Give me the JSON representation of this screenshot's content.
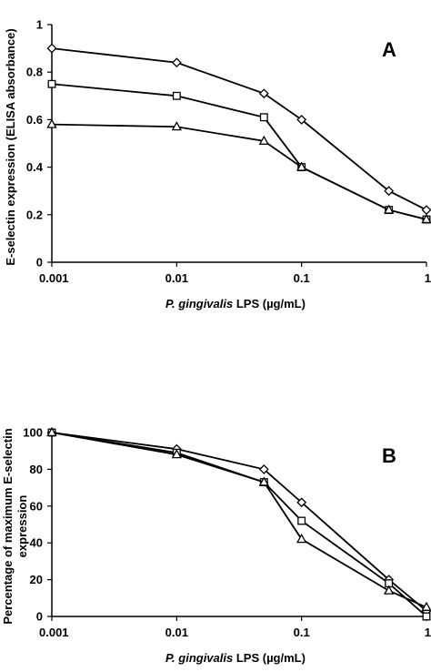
{
  "chart_data": [
    {
      "type": "line",
      "panel_label": "A",
      "x": [
        0.001,
        0.01,
        0.05,
        0.1,
        0.5,
        1
      ],
      "x_tick_labels": [
        "0.001",
        "0.01",
        "0.1",
        "1"
      ],
      "x_ticks": [
        0.001,
        0.01,
        0.1,
        1
      ],
      "xscale": "log",
      "xlabel_italic": "P. gingivalis",
      "xlabel_rest": " LPS (µg/mL)",
      "ylabel": "E-selectin expression (ELISA absorbance)",
      "ylim": [
        0,
        1
      ],
      "y_ticks": [
        0,
        0.2,
        0.4,
        0.6,
        0.8,
        1
      ],
      "y_tick_labels": [
        "0",
        "0.2",
        "0.4",
        "0.6",
        "0.8",
        "1"
      ],
      "grid": false,
      "series": [
        {
          "marker": "diamond",
          "values": [
            0.9,
            0.84,
            0.71,
            0.6,
            0.3,
            0.22
          ]
        },
        {
          "marker": "square",
          "values": [
            0.75,
            0.7,
            0.61,
            0.4,
            0.22,
            0.18
          ]
        },
        {
          "marker": "triangle",
          "values": [
            0.58,
            0.57,
            0.51,
            0.4,
            0.22,
            0.18
          ]
        }
      ]
    },
    {
      "type": "line",
      "panel_label": "B",
      "x": [
        0.001,
        0.01,
        0.05,
        0.1,
        0.5,
        1
      ],
      "x_tick_labels": [
        "0.001",
        "0.01",
        "0.1",
        "1"
      ],
      "x_ticks": [
        0.001,
        0.01,
        0.1,
        1
      ],
      "xscale": "log",
      "xlabel_italic": "P. gingivalis",
      "xlabel_rest": " LPS (µg/mL)",
      "ylabel_line1": "Percentage of maximum E-selectin",
      "ylabel_line2": "expression",
      "ylim": [
        0,
        100
      ],
      "y_ticks": [
        0,
        20,
        40,
        60,
        80,
        100
      ],
      "y_tick_labels": [
        "0",
        "20",
        "40",
        "60",
        "80",
        "100"
      ],
      "grid": false,
      "series": [
        {
          "marker": "diamond",
          "values": [
            100,
            91,
            80,
            62,
            20,
            3
          ]
        },
        {
          "marker": "square",
          "values": [
            100,
            89,
            73,
            52,
            18,
            0
          ]
        },
        {
          "marker": "triangle",
          "values": [
            100,
            88,
            73,
            42,
            14,
            5
          ]
        }
      ]
    }
  ]
}
